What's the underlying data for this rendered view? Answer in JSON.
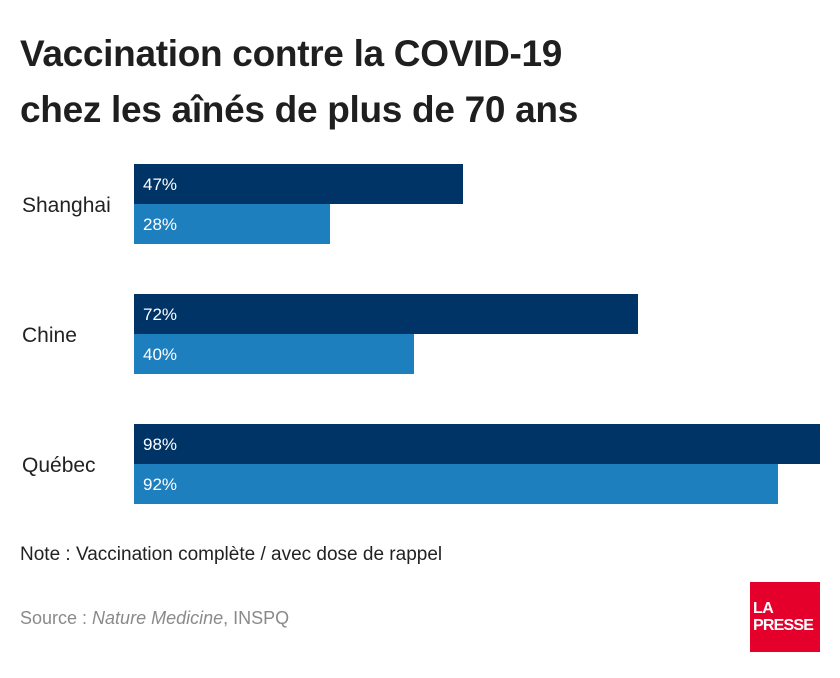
{
  "title": {
    "line1": "Vaccination contre la COVID-19",
    "line2": "chez les aînés de plus de 70 ans"
  },
  "chart_data": {
    "type": "bar",
    "orientation": "horizontal",
    "categories": [
      "Shanghai",
      "Chine",
      "Québec"
    ],
    "series": [
      {
        "values": [
          47,
          72,
          98
        ],
        "color": "#003366"
      },
      {
        "values": [
          28,
          40,
          92
        ],
        "color": "#1e7fbf"
      }
    ],
    "value_labels": [
      [
        "47%",
        "28%"
      ],
      [
        "72%",
        "40%"
      ],
      [
        "98%",
        "92%"
      ]
    ],
    "xlim": [
      0,
      100
    ],
    "grid": false
  },
  "note": "Note : Vaccination complète / avec dose de rappel",
  "source": {
    "prefix": "Source : ",
    "publication": "Nature Medicine",
    "rest": ", INSPQ"
  },
  "logo": {
    "line1": "LA",
    "line2": "PRESSE",
    "color": "#e4002b"
  }
}
